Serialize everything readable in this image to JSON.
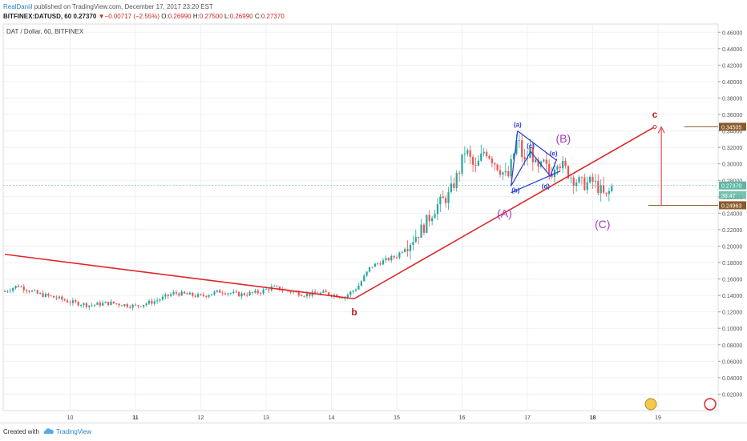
{
  "header": {
    "author": "RealDaniil",
    "published": " published on TradingView.com, December 17, 2017 23:20 EST",
    "symbol_line": "BITFINEX:DATUSD, 60",
    "last": "0.27370",
    "change_arrow": "▼",
    "change": "−0.00717 (−2.55%)",
    "o_label": "O:",
    "o_value": "0.26990",
    "h_label": "H:",
    "h_value": "0.27500",
    "l_label": "L:",
    "l_value": "0.26990",
    "c_label": "C:",
    "c_value": "0.27370"
  },
  "chart_title": "DAT / Dollar, 60, BITFINEX",
  "footer": {
    "created_with": "Created with",
    "brand": "TradingView"
  },
  "colors": {
    "up": "#26a69a",
    "down": "#ef5350",
    "trendline": "#e0262b",
    "wave_blue": "#2b3bd6",
    "wave_purple": "#a63cb5",
    "level_brown": "#8b5a2b",
    "last_price": "#5fb7a2"
  },
  "annotations": {
    "b": "b",
    "c": "c",
    "A": "(A)",
    "B": "(B)",
    "C": "(C)",
    "a": "(a)",
    "bb": "(b)",
    "cc": "(c)",
    "d": "(d)",
    "e": "(e)"
  },
  "chart_data": {
    "type": "candlestick",
    "title": "DAT / Dollar, 60, BITFINEX",
    "x_ticks": [
      "10",
      "11",
      "12",
      "13",
      "14",
      "15",
      "16",
      "17",
      "18",
      "19"
    ],
    "x_range_days": [
      9.0,
      19.8
    ],
    "y_ticks": [
      "0.46000",
      "0.44000",
      "0.42000",
      "0.40000",
      "0.38000",
      "0.36000",
      "0.34000",
      "0.32000",
      "0.30000",
      "0.28000",
      "0.26000",
      "0.24000",
      "0.22000",
      "0.20000",
      "0.18000",
      "0.16000",
      "0.14000",
      "0.12000",
      "0.10000",
      "0.08000",
      "0.06000",
      "0.04000",
      "0.02000"
    ],
    "ylim": [
      0.0,
      0.47
    ],
    "price_labels": [
      {
        "value": 0.34505,
        "text": "0.34505",
        "kind": "level"
      },
      {
        "value": 0.2737,
        "text": "0.27370",
        "kind": "last"
      },
      {
        "value": 0.262,
        "text": "38:47",
        "kind": "timer"
      },
      {
        "value": 0.24963,
        "text": "0.24963",
        "kind": "level"
      }
    ],
    "price_path": [
      [
        9.0,
        0.145
      ],
      [
        9.2,
        0.152
      ],
      [
        9.5,
        0.142
      ],
      [
        9.8,
        0.137
      ],
      [
        10.0,
        0.132
      ],
      [
        10.3,
        0.128
      ],
      [
        10.6,
        0.131
      ],
      [
        11.0,
        0.127
      ],
      [
        11.3,
        0.133
      ],
      [
        11.6,
        0.143
      ],
      [
        12.0,
        0.139
      ],
      [
        12.3,
        0.145
      ],
      [
        12.6,
        0.141
      ],
      [
        12.9,
        0.144
      ],
      [
        13.1,
        0.15
      ],
      [
        13.3,
        0.146
      ],
      [
        13.6,
        0.141
      ],
      [
        13.9,
        0.143
      ],
      [
        14.2,
        0.138
      ],
      [
        14.4,
        0.15
      ],
      [
        14.6,
        0.175
      ],
      [
        14.8,
        0.182
      ],
      [
        15.0,
        0.188
      ],
      [
        15.2,
        0.205
      ],
      [
        15.4,
        0.222
      ],
      [
        15.6,
        0.248
      ],
      [
        15.8,
        0.262
      ],
      [
        15.95,
        0.29
      ],
      [
        16.05,
        0.318
      ],
      [
        16.2,
        0.292
      ],
      [
        16.35,
        0.318
      ],
      [
        16.5,
        0.302
      ],
      [
        16.7,
        0.282
      ],
      [
        16.85,
        0.332
      ],
      [
        16.95,
        0.3
      ],
      [
        17.05,
        0.318
      ],
      [
        17.15,
        0.29
      ],
      [
        17.25,
        0.3
      ],
      [
        17.35,
        0.286
      ],
      [
        17.45,
        0.306
      ],
      [
        17.55,
        0.296
      ],
      [
        17.7,
        0.282
      ],
      [
        17.85,
        0.275
      ],
      [
        18.0,
        0.278
      ],
      [
        18.1,
        0.27
      ],
      [
        18.2,
        0.258
      ],
      [
        18.3,
        0.273
      ]
    ],
    "trendlines": [
      {
        "name": "descending",
        "points": [
          [
            9.0,
            0.19
          ],
          [
            14.35,
            0.136
          ]
        ]
      },
      {
        "name": "ascending",
        "points": [
          [
            14.35,
            0.136
          ],
          [
            18.95,
            0.345
          ]
        ]
      }
    ],
    "wave_points": {
      "a": [
        16.85,
        0.34
      ],
      "b": [
        16.75,
        0.273
      ],
      "c": [
        17.05,
        0.315
      ],
      "d": [
        17.35,
        0.285
      ],
      "e": [
        17.45,
        0.306
      ]
    },
    "target_arrow": {
      "from": 0.249,
      "to": 0.345,
      "day": 19.05
    }
  }
}
